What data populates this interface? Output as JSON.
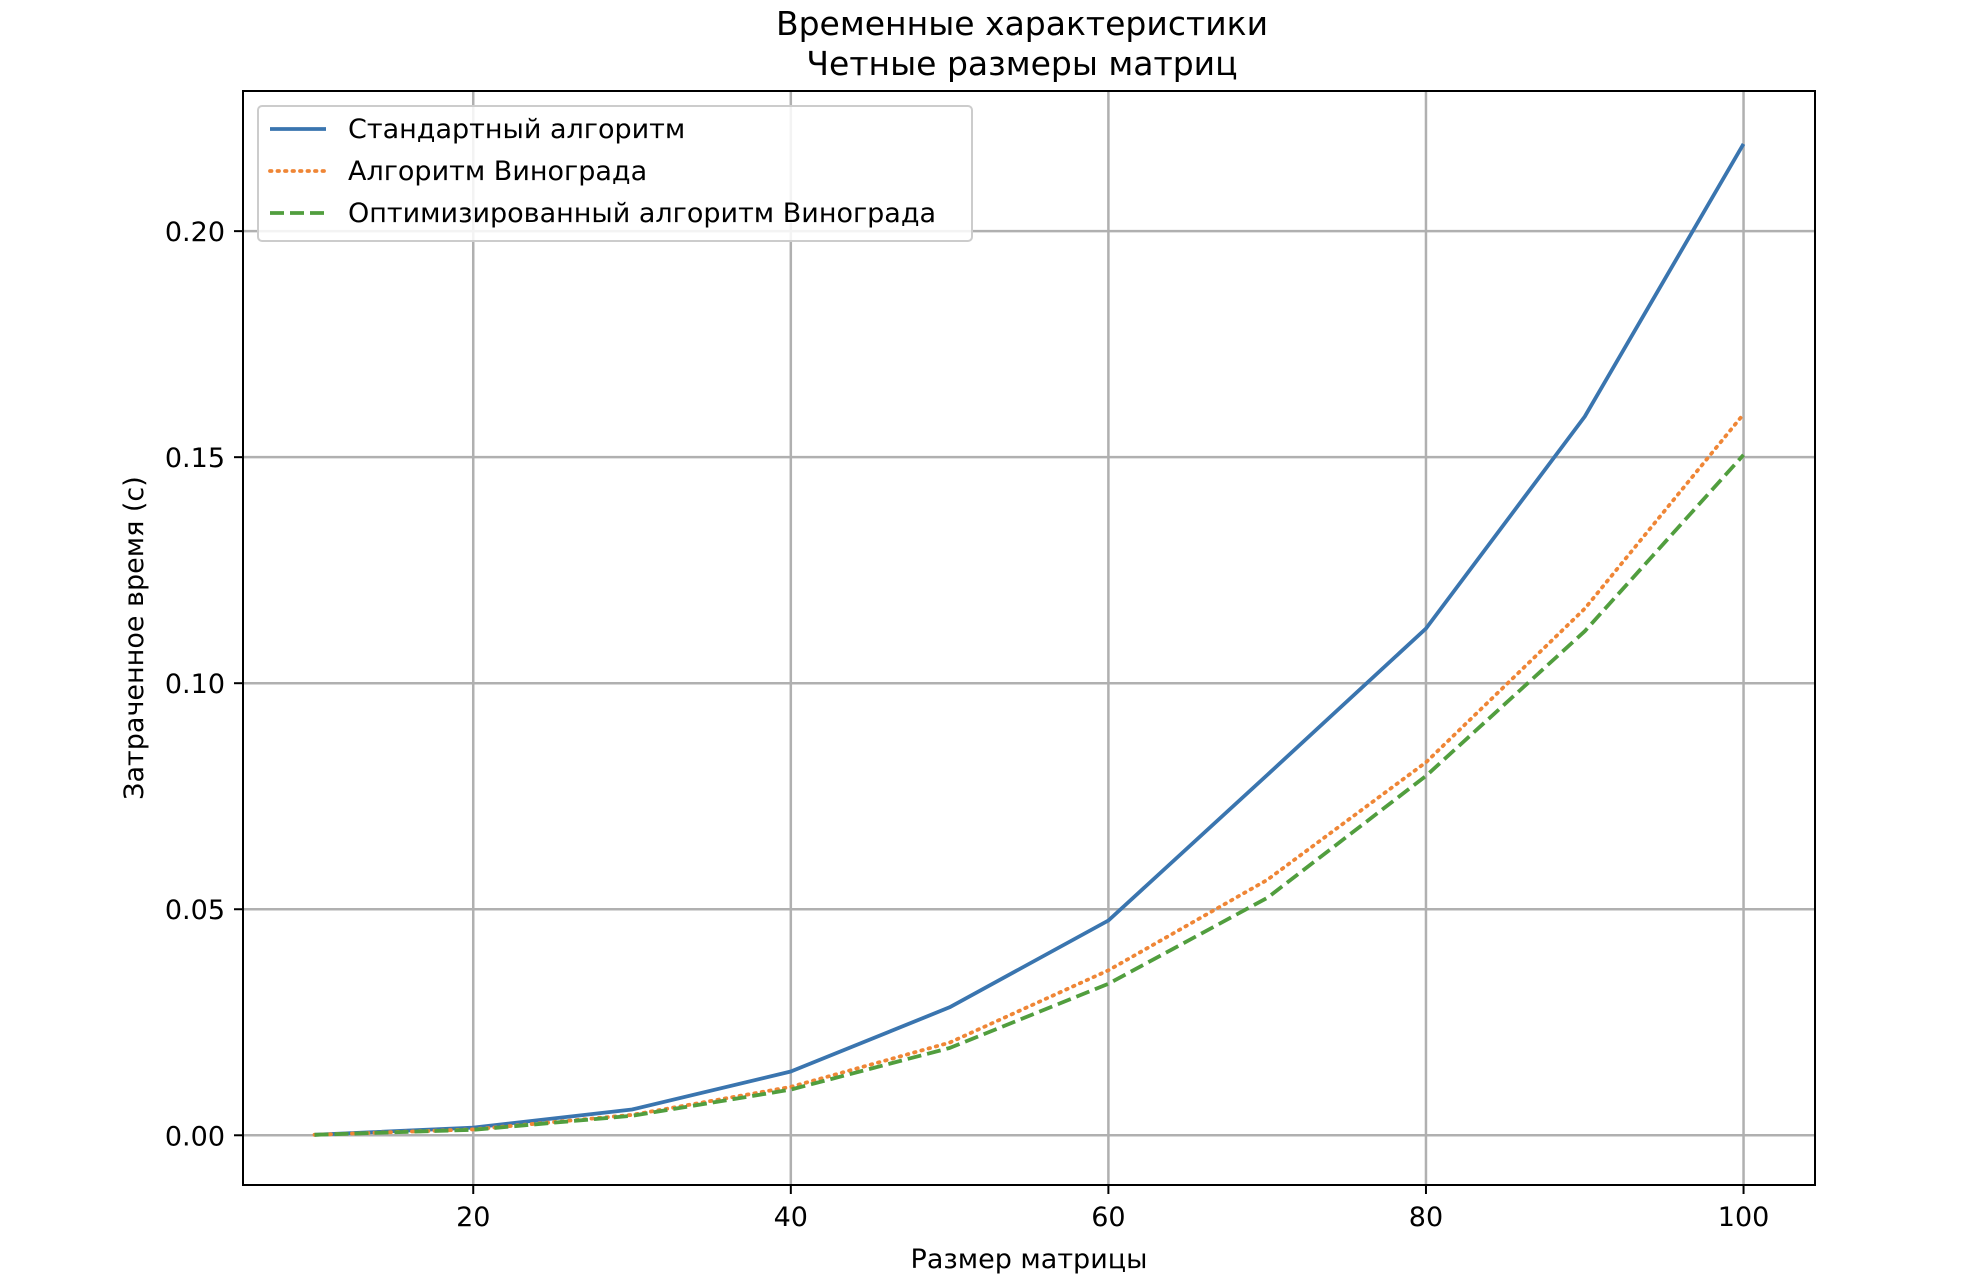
{
  "chart_data": {
    "type": "line",
    "title": [
      "Временные характеристики",
      "Четные размеры матриц"
    ],
    "xlabel": "Размер матрицы",
    "ylabel": "Затраченное время (с)",
    "xlim": [
      5.5,
      104.5
    ],
    "ylim": [
      -0.011,
      0.231
    ],
    "xticks": [
      20,
      40,
      60,
      80,
      100
    ],
    "yticks": [
      0.0,
      0.05,
      0.1,
      0.15,
      0.2
    ],
    "xtick_labels": [
      "20",
      "40",
      "60",
      "80",
      "100"
    ],
    "ytick_labels": [
      "0.00",
      "0.05",
      "0.10",
      "0.15",
      "0.20"
    ],
    "grid": true,
    "legend_position": "top-left",
    "x": [
      10,
      20,
      30,
      40,
      50,
      60,
      70,
      80,
      90,
      100
    ],
    "series": [
      {
        "name": "Стандартный алгоритм",
        "color": "#3a75af",
        "style": "solid",
        "values": [
          0.0001,
          0.0017,
          0.0057,
          0.0141,
          0.0283,
          0.0475,
          0.0797,
          0.1121,
          0.159,
          0.2193
        ]
      },
      {
        "name": "Алгоритм Винограда",
        "color": "#ef8636",
        "style": "dotted",
        "values": [
          0.0001,
          0.0013,
          0.0045,
          0.0107,
          0.0205,
          0.0365,
          0.0565,
          0.0825,
          0.1165,
          0.1595
        ]
      },
      {
        "name": "Оптимизированный алгоритм Винограда",
        "color": "#519e3e",
        "style": "dashed",
        "values": [
          0.0001,
          0.0012,
          0.0043,
          0.0101,
          0.0193,
          0.0335,
          0.0525,
          0.0795,
          0.1115,
          0.1505
        ]
      }
    ]
  }
}
